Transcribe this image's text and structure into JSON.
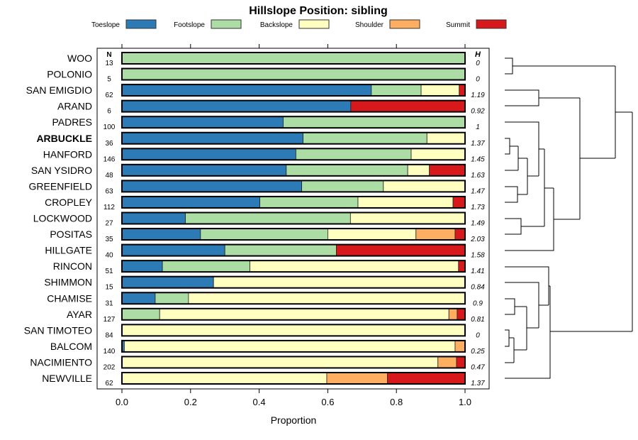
{
  "chart_data": {
    "type": "bar",
    "orientation": "horizontal-stacked",
    "title": "Hillslope Position: sibling",
    "xlabel": "Proportion",
    "xlim": [
      0,
      1
    ],
    "xticks": [
      "0.0",
      "0.2",
      "0.4",
      "0.6",
      "0.8",
      "1.0"
    ],
    "n_header": "N",
    "h_header": "H",
    "legend_position": "top",
    "series": [
      {
        "name": "Toeslope",
        "color": "#2c7bb6"
      },
      {
        "name": "Footslope",
        "color": "#abdda4"
      },
      {
        "name": "Backslope",
        "color": "#ffffbf"
      },
      {
        "name": "Shoulder",
        "color": "#fdae61"
      },
      {
        "name": "Summit",
        "color": "#d7191c"
      }
    ],
    "rows": [
      {
        "name": "WOO",
        "n": "13",
        "h": "0",
        "values": [
          0,
          1,
          0,
          0,
          0
        ]
      },
      {
        "name": "POLONIO",
        "n": "5",
        "h": "0",
        "values": [
          0,
          1,
          0,
          0,
          0
        ]
      },
      {
        "name": "SAN EMIGDIO",
        "n": "62",
        "h": "1.19",
        "values": [
          0.727,
          0.145,
          0.111,
          0,
          0.017
        ]
      },
      {
        "name": "ARAND",
        "n": "6",
        "h": "0.92",
        "values": [
          0.667,
          0,
          0,
          0,
          0.333
        ]
      },
      {
        "name": "PADRES",
        "n": "100",
        "h": "1",
        "values": [
          0.47,
          0.53,
          0,
          0,
          0
        ]
      },
      {
        "name": "ARBUCKLE",
        "n": "36",
        "h": "1.37",
        "values": [
          0.528,
          0.361,
          0.111,
          0,
          0
        ],
        "bold": true
      },
      {
        "name": "HANFORD",
        "n": "146",
        "h": "1.45",
        "values": [
          0.507,
          0.336,
          0.157,
          0,
          0
        ]
      },
      {
        "name": "SAN YSIDRO",
        "n": "48",
        "h": "1.63",
        "values": [
          0.479,
          0.354,
          0.063,
          0,
          0.104
        ]
      },
      {
        "name": "GREENFIELD",
        "n": "63",
        "h": "1.47",
        "values": [
          0.524,
          0.238,
          0.238,
          0,
          0
        ]
      },
      {
        "name": "CROPLEY",
        "n": "112",
        "h": "1.73",
        "values": [
          0.402,
          0.286,
          0.277,
          0,
          0.035
        ]
      },
      {
        "name": "LOCKWOOD",
        "n": "27",
        "h": "1.49",
        "values": [
          0.185,
          0.481,
          0.334,
          0,
          0
        ]
      },
      {
        "name": "POSITAS",
        "n": "35",
        "h": "2.03",
        "values": [
          0.229,
          0.371,
          0.257,
          0.114,
          0.029
        ]
      },
      {
        "name": "HILLGATE",
        "n": "40",
        "h": "1.58",
        "values": [
          0.3,
          0.325,
          0,
          0,
          0.375
        ]
      },
      {
        "name": "RINCON",
        "n": "51",
        "h": "1.41",
        "values": [
          0.118,
          0.255,
          0.608,
          0,
          0.019
        ]
      },
      {
        "name": "SHIMMON",
        "n": "15",
        "h": "0.84",
        "values": [
          0.267,
          0,
          0.733,
          0,
          0
        ]
      },
      {
        "name": "CHAMISE",
        "n": "31",
        "h": "0.9",
        "values": [
          0.097,
          0.097,
          0.806,
          0,
          0
        ]
      },
      {
        "name": "AYAR",
        "n": "127",
        "h": "0.81",
        "values": [
          0,
          0.11,
          0.843,
          0.024,
          0.023
        ]
      },
      {
        "name": "SAN TIMOTEO",
        "n": "84",
        "h": "0",
        "values": [
          0,
          0,
          1,
          0,
          0
        ]
      },
      {
        "name": "BALCOM",
        "n": "140",
        "h": "0.25",
        "values": [
          0.007,
          0,
          0.964,
          0.029,
          0
        ]
      },
      {
        "name": "NACIMIENTO",
        "n": "202",
        "h": "0.47",
        "values": [
          0,
          0,
          0.921,
          0.054,
          0.025
        ]
      },
      {
        "name": "NEWVILLE",
        "n": "62",
        "h": "1.37",
        "values": [
          0,
          0,
          0.597,
          0.177,
          0.226
        ]
      }
    ]
  }
}
